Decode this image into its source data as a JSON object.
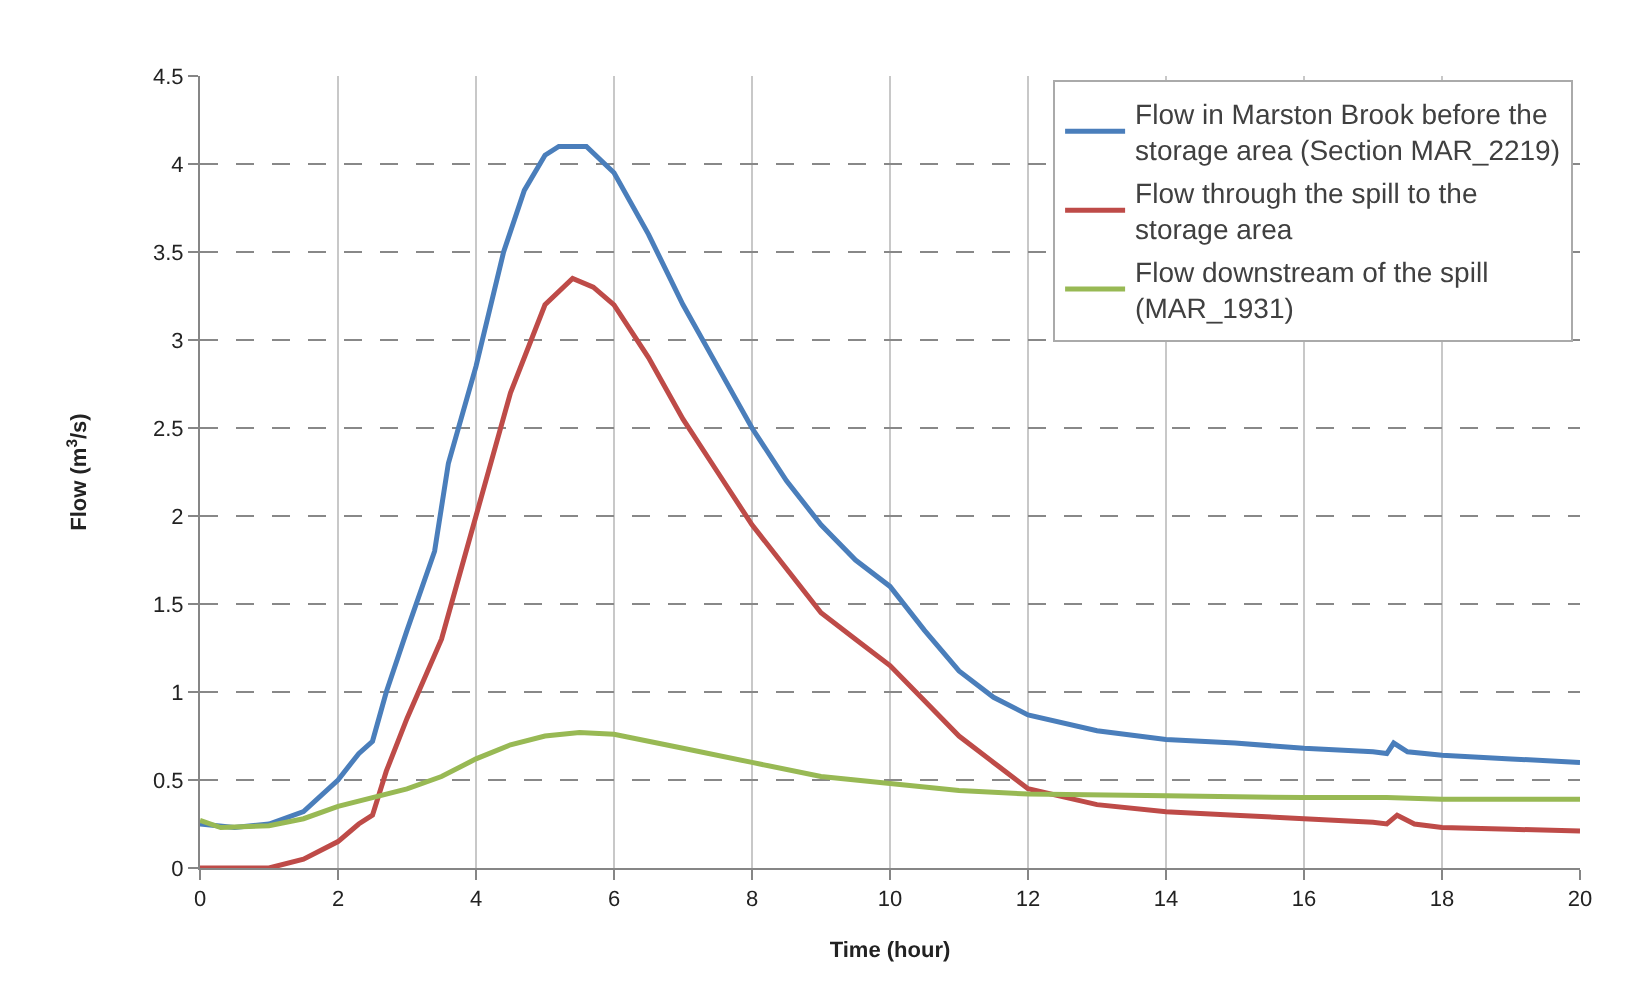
{
  "chart_data": {
    "type": "line",
    "xlabel": "Time (hour)",
    "ylabel": "Flow (m$^{3}$/s)",
    "xlim": [
      0,
      20
    ],
    "xticks": [
      0,
      2,
      4,
      6,
      8,
      10,
      12,
      14,
      16,
      18,
      20
    ],
    "ylim": [
      0,
      4.5
    ],
    "yticks": [
      0,
      0.5,
      1,
      1.5,
      2,
      2.5,
      3,
      3.5,
      4,
      4.5
    ],
    "grid": true,
    "legend": "top right",
    "marker": "none",
    "line_style": "solid",
    "series": [
      {
        "name": "Flow in Marston Brook before the storage area (Section MAR_2219)",
        "color": "#4a7ebb",
        "x": [
          0,
          0.5,
          1,
          1.5,
          2,
          2.3,
          2.5,
          2.7,
          3,
          3.4,
          3.6,
          4,
          4.4,
          4.7,
          5,
          5.2,
          5.6,
          6,
          6.5,
          7,
          7.5,
          8,
          8.5,
          9,
          9.5,
          10,
          10.5,
          11,
          11.5,
          12,
          13,
          14,
          15,
          16,
          17,
          17.2,
          17.3,
          17.5,
          18,
          19,
          20
        ],
        "values": [
          0.25,
          0.23,
          0.25,
          0.32,
          0.5,
          0.65,
          0.72,
          1.0,
          1.35,
          1.8,
          2.3,
          2.85,
          3.5,
          3.85,
          4.05,
          4.1,
          4.1,
          3.95,
          3.6,
          3.2,
          2.85,
          2.5,
          2.2,
          1.95,
          1.75,
          1.6,
          1.35,
          1.12,
          0.97,
          0.87,
          0.78,
          0.73,
          0.71,
          0.68,
          0.66,
          0.65,
          0.71,
          0.66,
          0.64,
          0.62,
          0.6
        ]
      },
      {
        "name": "Flow through the spill to the storage area",
        "color": "#be4b48",
        "x": [
          0,
          1,
          1.5,
          2,
          2.3,
          2.5,
          2.7,
          3,
          3.5,
          4,
          4.5,
          5,
          5.4,
          5.7,
          6,
          6.5,
          7,
          7.5,
          8,
          8.5,
          9,
          9.5,
          10,
          10.5,
          11,
          11.5,
          12,
          13,
          14,
          15,
          16,
          17,
          17.2,
          17.35,
          17.6,
          18,
          19,
          20
        ],
        "values": [
          0,
          0,
          0.05,
          0.15,
          0.25,
          0.3,
          0.55,
          0.85,
          1.3,
          2.0,
          2.7,
          3.2,
          3.35,
          3.3,
          3.2,
          2.9,
          2.55,
          2.25,
          1.95,
          1.7,
          1.45,
          1.3,
          1.15,
          0.95,
          0.75,
          0.6,
          0.45,
          0.36,
          0.32,
          0.3,
          0.28,
          0.26,
          0.25,
          0.3,
          0.25,
          0.23,
          0.22,
          0.21
        ]
      },
      {
        "name": "Flow downstream of the spill (MAR_1931)",
        "color": "#98b954",
        "x": [
          0,
          0.3,
          1,
          1.5,
          2,
          3,
          3.5,
          4,
          4.5,
          5,
          5.5,
          6,
          7,
          8,
          9,
          10,
          11,
          12,
          14,
          16,
          17.2,
          18,
          20
        ],
        "values": [
          0.27,
          0.23,
          0.24,
          0.28,
          0.35,
          0.45,
          0.52,
          0.62,
          0.7,
          0.75,
          0.77,
          0.76,
          0.68,
          0.6,
          0.52,
          0.48,
          0.44,
          0.42,
          0.41,
          0.4,
          0.4,
          0.39,
          0.39
        ]
      }
    ]
  }
}
